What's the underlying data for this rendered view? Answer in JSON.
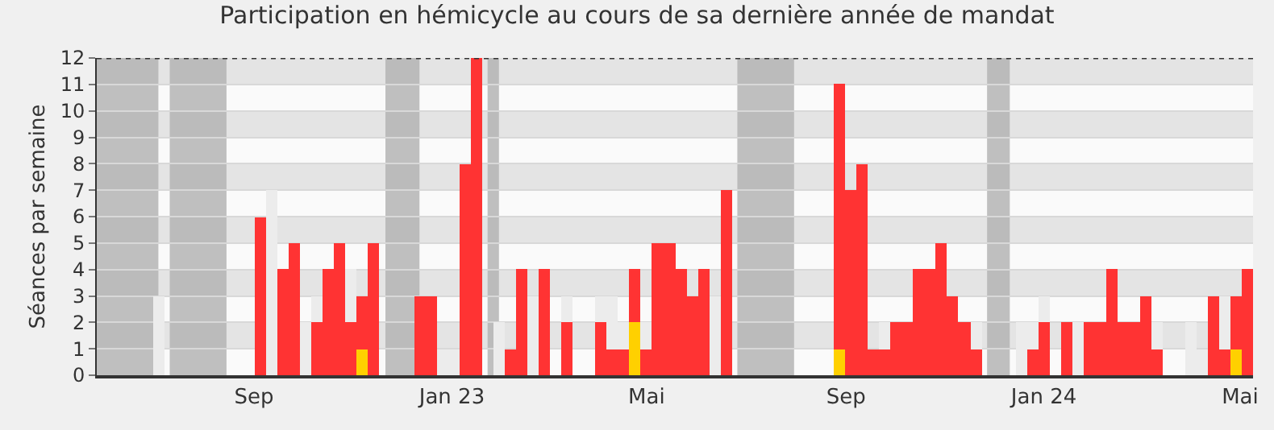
{
  "chart_data": {
    "type": "bar",
    "title": "Participation en hémicycle au cours de sa dernière année de mandat",
    "ylabel": "Séances par semaine",
    "x": [
      "2022-05-30",
      "2022-06-06",
      "2022-06-13",
      "2022-06-20",
      "2022-06-27",
      "2022-07-04",
      "2022-07-11",
      "2022-07-18",
      "2022-07-25",
      "2022-08-01",
      "2022-08-08",
      "2022-08-15",
      "2022-08-22",
      "2022-08-29",
      "2022-09-05",
      "2022-09-12",
      "2022-09-19",
      "2022-09-26",
      "2022-10-03",
      "2022-10-10",
      "2022-10-17",
      "2022-10-24",
      "2022-10-31",
      "2022-11-07",
      "2022-11-14",
      "2022-11-21",
      "2022-11-28",
      "2022-12-05",
      "2022-12-12",
      "2022-12-19",
      "2022-12-26",
      "2023-01-02",
      "2023-01-09",
      "2023-01-16",
      "2023-01-23",
      "2023-01-30",
      "2023-02-06",
      "2023-02-13",
      "2023-02-20",
      "2023-02-27",
      "2023-03-06",
      "2023-03-13",
      "2023-03-20",
      "2023-03-27",
      "2023-04-03",
      "2023-04-10",
      "2023-04-17",
      "2023-04-24",
      "2023-05-01",
      "2023-05-08",
      "2023-05-15",
      "2023-05-22",
      "2023-05-29",
      "2023-06-05",
      "2023-06-12",
      "2023-06-19",
      "2023-06-26",
      "2023-07-03",
      "2023-07-10",
      "2023-07-17",
      "2023-07-24",
      "2023-07-31",
      "2023-08-07",
      "2023-08-14",
      "2023-08-21",
      "2023-08-28",
      "2023-09-04",
      "2023-09-11",
      "2023-09-18",
      "2023-09-25",
      "2023-10-02",
      "2023-10-09",
      "2023-10-16",
      "2023-10-23",
      "2023-10-30",
      "2023-11-06",
      "2023-11-13",
      "2023-11-20",
      "2023-11-27",
      "2023-12-04",
      "2023-12-11",
      "2023-12-18",
      "2023-12-25",
      "2024-01-01",
      "2024-01-08",
      "2024-01-15",
      "2024-01-22",
      "2024-01-29",
      "2024-02-05",
      "2024-02-12",
      "2024-02-19",
      "2024-02-26",
      "2024-03-04",
      "2024-03-11",
      "2024-03-18",
      "2024-03-25",
      "2024-04-01",
      "2024-04-08",
      "2024-04-15",
      "2024-04-22",
      "2024-04-29",
      "2024-05-06"
    ],
    "series": [
      {
        "color": "#ececec",
        "values": [
          null,
          null,
          null,
          null,
          null,
          3,
          null,
          null,
          null,
          null,
          null,
          null,
          null,
          null,
          null,
          7,
          null,
          null,
          2,
          3,
          null,
          null,
          4,
          null,
          null,
          null,
          null,
          null,
          null,
          null,
          1,
          1,
          null,
          null,
          null,
          2,
          null,
          null,
          3,
          null,
          null,
          3,
          null,
          null,
          3,
          3,
          2,
          null,
          2,
          null,
          null,
          null,
          null,
          null,
          3,
          null,
          null,
          null,
          null,
          null,
          null,
          null,
          null,
          null,
          null,
          null,
          null,
          null,
          null,
          2,
          null,
          null,
          null,
          null,
          null,
          null,
          null,
          2,
          null,
          null,
          null,
          2,
          2,
          3,
          null,
          null,
          2,
          null,
          null,
          null,
          null,
          null,
          null,
          2,
          null,
          null,
          2,
          1,
          null,
          3,
          null,
          null
        ]
      },
      {
        "color": "#ff3333",
        "values": [
          0,
          0,
          0,
          0,
          0,
          0,
          0,
          0,
          0,
          0,
          0,
          0,
          0,
          0,
          6,
          0,
          4,
          5,
          0,
          2,
          4,
          5,
          2,
          3,
          5,
          0,
          0,
          0,
          3,
          3,
          0,
          0,
          8,
          12,
          0,
          0,
          1,
          4,
          0,
          4,
          0,
          2,
          0,
          0,
          2,
          1,
          1,
          4,
          1,
          5,
          5,
          4,
          3,
          4,
          0,
          7,
          0,
          0,
          0,
          0,
          0,
          0,
          0,
          0,
          0,
          11,
          7,
          8,
          1,
          1,
          2,
          2,
          4,
          4,
          5,
          3,
          2,
          1,
          0,
          0,
          0,
          0,
          1,
          2,
          0,
          2,
          0,
          2,
          2,
          4,
          2,
          2,
          3,
          1,
          0,
          0,
          0,
          0,
          3,
          1,
          3,
          4
        ]
      },
      {
        "color": "#ffd000",
        "values": [
          null,
          null,
          null,
          null,
          null,
          null,
          null,
          null,
          null,
          null,
          null,
          null,
          null,
          null,
          null,
          null,
          null,
          null,
          null,
          null,
          null,
          null,
          null,
          1,
          null,
          null,
          null,
          null,
          null,
          null,
          null,
          null,
          null,
          null,
          null,
          null,
          null,
          null,
          null,
          null,
          null,
          null,
          null,
          null,
          null,
          null,
          null,
          2,
          null,
          null,
          null,
          null,
          null,
          null,
          null,
          null,
          null,
          null,
          null,
          null,
          null,
          null,
          null,
          null,
          null,
          1,
          null,
          null,
          null,
          null,
          null,
          null,
          null,
          null,
          null,
          null,
          null,
          null,
          null,
          null,
          null,
          null,
          null,
          null,
          null,
          null,
          null,
          null,
          null,
          null,
          null,
          null,
          null,
          null,
          null,
          null,
          null,
          null,
          null,
          null,
          1,
          null
        ]
      }
    ],
    "bands": [
      {
        "axis": "x",
        "from": "2022-05-27",
        "to": "2022-07-04",
        "color": "#b4b4b4"
      },
      {
        "axis": "x",
        "from": "2022-07-11",
        "to": "2022-08-15",
        "color": "#b4b4b4"
      },
      {
        "axis": "x",
        "from": "2022-11-21",
        "to": "2022-12-12",
        "color": "#b4b4b4"
      },
      {
        "axis": "x",
        "from": "2023-01-23",
        "to": "2023-01-30",
        "color": "#b4b4b4"
      },
      {
        "axis": "x",
        "from": "2023-06-26",
        "to": "2023-07-31",
        "color": "#b4b4b4"
      },
      {
        "axis": "x",
        "from": "2023-11-27",
        "to": "2023-12-11",
        "color": "#b4b4b4"
      }
    ],
    "xlim": [
      "2022-05-27",
      "2024-05-09"
    ],
    "xticks": [
      {
        "value": "2022-09-01",
        "label": "Sep"
      },
      {
        "value": "2023-01-01",
        "label": "Jan 23"
      },
      {
        "value": "2023-05-01",
        "label": "Mai"
      },
      {
        "value": "2023-09-01",
        "label": "Sep"
      },
      {
        "value": "2024-01-01",
        "label": "Jan 24"
      },
      {
        "value": "2024-05-01",
        "label": "Mai"
      }
    ],
    "ylim": [
      0,
      12
    ],
    "yticks": [
      0,
      1,
      2,
      3,
      4,
      5,
      6,
      7,
      8,
      9,
      10,
      11,
      12
    ],
    "grid": true
  }
}
